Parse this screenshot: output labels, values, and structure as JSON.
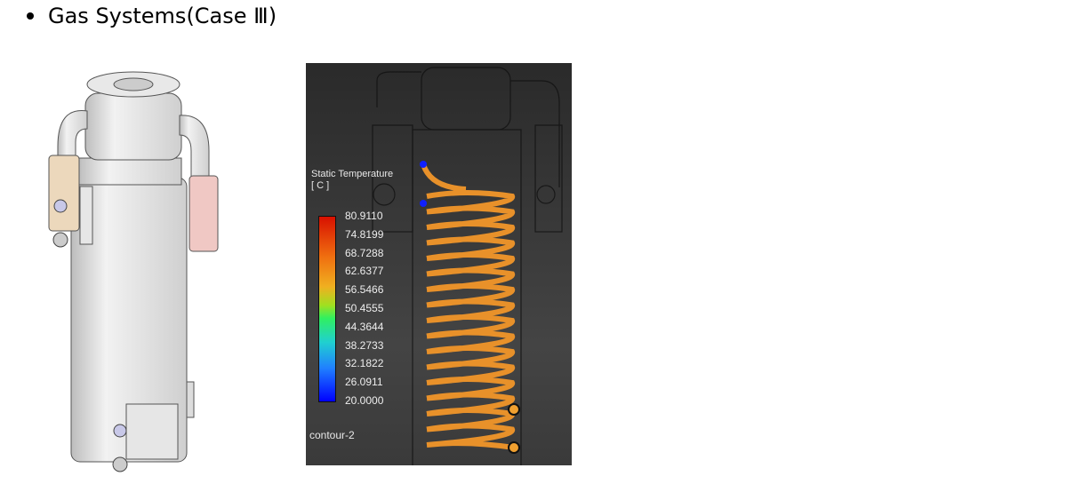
{
  "heading": "Gas Systems(Case Ⅲ)",
  "legend": {
    "title_line1": "Static Temperature",
    "title_line2": "[ C ]",
    "ticks": [
      "80.9110",
      "74.8199",
      "68.7288",
      "62.6377",
      "56.5466",
      "50.4555",
      "44.3644",
      "38.2733",
      "32.1822",
      "26.0911",
      "20.0000"
    ],
    "name": "contour-2"
  },
  "colors": {
    "coil": "#e8912a",
    "inlet": "#1020ff",
    "background": "#333333"
  }
}
